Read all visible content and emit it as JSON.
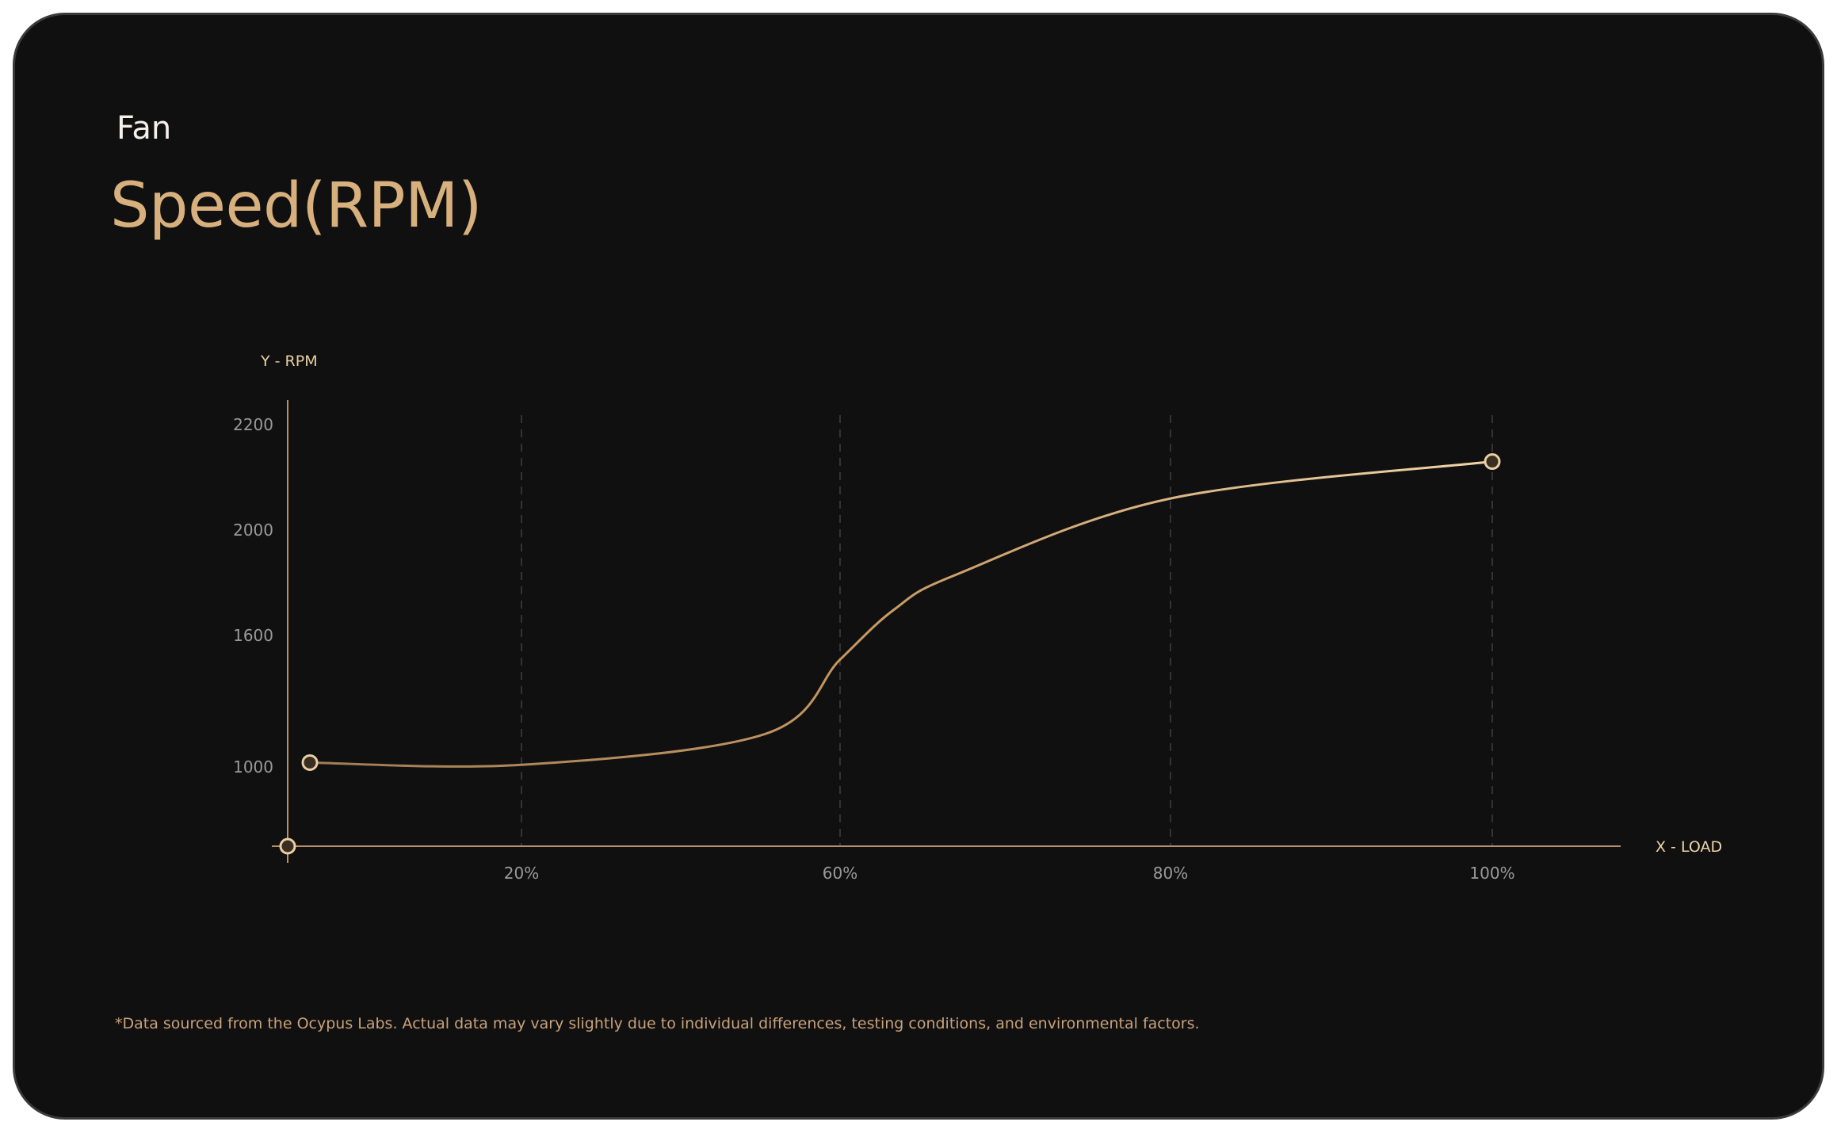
{
  "header": {
    "fan_label": "Fan",
    "title": "Speed(RPM)"
  },
  "colors": {
    "accent": "#d7b07d",
    "background": "#101010",
    "tick_label": "#9a9a9a",
    "grid": "#333333"
  },
  "footnote": "*Data sourced from the Ocypus Labs. Actual data may vary slightly due to individual differences, testing conditions, and environmental factors.",
  "chart_data": {
    "type": "line",
    "title": "",
    "xlabel": "X - LOAD",
    "ylabel": "Y - RPM",
    "x_ticks": [
      "20%",
      "60%",
      "80%",
      "100%"
    ],
    "y_ticks": [
      "1000",
      "1600",
      "2000",
      "2200"
    ],
    "grid": "vertical dashed",
    "series": [
      {
        "points": [
          {
            "x": "0%",
            "y": 1020
          },
          {
            "x": "20%",
            "y": 1010
          },
          {
            "x": "50%",
            "y": 1150
          },
          {
            "x": "60%",
            "y": 1490
          },
          {
            "x": "65%",
            "y": 1700
          },
          {
            "x": "70%",
            "y": 1830
          },
          {
            "x": "80%",
            "y": 2060
          },
          {
            "x": "100%",
            "y": 2130
          }
        ]
      }
    ]
  }
}
